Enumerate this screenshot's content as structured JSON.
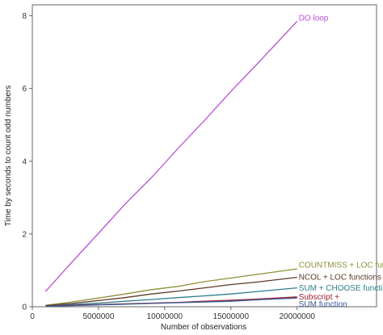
{
  "chart_data": {
    "type": "line",
    "title": "",
    "xlabel": "Number of observations",
    "ylabel": "Time by seconds to count odd numbers",
    "xlim": [
      0,
      26000000
    ],
    "ylim": [
      0,
      8.3
    ],
    "x_ticks": [
      0,
      5000000,
      10000000,
      15000000,
      20000000
    ],
    "x_tick_labels": [
      "0",
      "5000000",
      "10000000",
      "15000000",
      "20000000"
    ],
    "y_ticks": [
      0,
      2,
      4,
      6,
      8
    ],
    "y_tick_labels": [
      "0",
      "2",
      "4",
      "6",
      "8"
    ],
    "grid": false,
    "legend": "none (series labelled at line ends)",
    "x": [
      1000000,
      3000000,
      5000000,
      7000000,
      9000000,
      11000000,
      13000000,
      15000000,
      17000000,
      20000000
    ],
    "series": [
      {
        "name": "DO loop",
        "color": "#b84fd6",
        "values": [
          0.42,
          1.23,
          2.02,
          2.82,
          3.55,
          4.35,
          5.12,
          5.92,
          6.68,
          7.85
        ]
      },
      {
        "name": "COUNTMISS + LOC functions",
        "color": "#8f8f3a",
        "values": [
          0.04,
          0.13,
          0.24,
          0.35,
          0.47,
          0.56,
          0.69,
          0.79,
          0.89,
          1.04
        ]
      },
      {
        "name": "NCOL + LOC functions",
        "color": "#5e3a28",
        "values": [
          0.03,
          0.09,
          0.17,
          0.25,
          0.35,
          0.43,
          0.52,
          0.61,
          0.68,
          0.81
        ]
      },
      {
        "name": "SUM + CHOOSE functions",
        "color": "#2e7f8f",
        "values": [
          0.02,
          0.06,
          0.1,
          0.15,
          0.2,
          0.25,
          0.3,
          0.35,
          0.42,
          0.52
        ]
      },
      {
        "name": "Subscript + SUM function",
        "color": "#9a1f2a",
        "values": [
          0.02,
          0.04,
          0.06,
          0.08,
          0.1,
          0.12,
          0.15,
          0.18,
          0.21,
          0.27
        ]
      },
      {
        "name": "",
        "color": "#3a5c9a",
        "values": [
          0.01,
          0.03,
          0.05,
          0.07,
          0.09,
          0.11,
          0.13,
          0.15,
          0.19,
          0.24
        ]
      }
    ],
    "annotations": [
      {
        "text": "DO loop",
        "color": "#b84fd6",
        "x": 20000000,
        "y": 7.95
      },
      {
        "text": "COUNTMISS + LOC functions",
        "color": "#8f8f3a",
        "x": 20000000,
        "y": 1.15
      },
      {
        "text": "NCOL + LOC functions",
        "color": "#5e3a28",
        "x": 20000000,
        "y": 0.82
      },
      {
        "text": "SUM + CHOOSE functions",
        "color": "#2e7f8f",
        "x": 20000000,
        "y": 0.52
      },
      {
        "text": "Subscript +",
        "color": "#9a1f2a",
        "x": 20000000,
        "y": 0.28
      },
      {
        "text": "SUM function",
        "color": "#3a5c9a",
        "x": 20000000,
        "y": 0.08
      }
    ]
  }
}
